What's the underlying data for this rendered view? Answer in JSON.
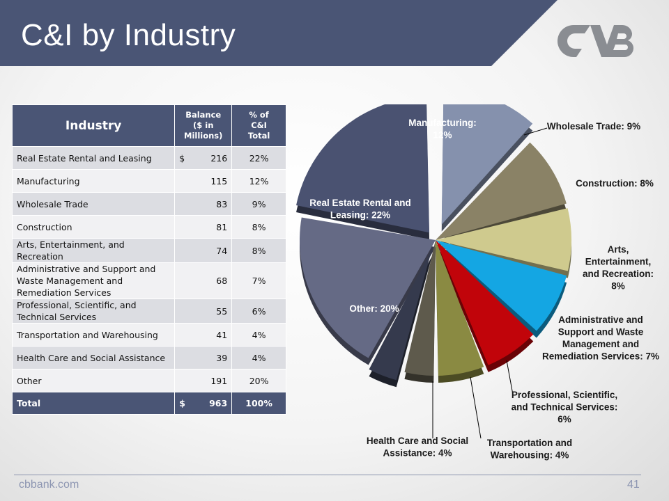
{
  "slide": {
    "title": "C&I by Industry",
    "footer": "cbbank.com",
    "page_number": "41"
  },
  "table": {
    "headers": {
      "industry": "Industry",
      "balance_line1": "Balance",
      "balance_line2": "($ in Millions)",
      "pct_line1": "% of",
      "pct_line2": "C&I",
      "pct_line3": "Total"
    },
    "rows": [
      {
        "industry": "Real Estate Rental and Leasing",
        "currency": "$",
        "balance": "216",
        "pct": "22%"
      },
      {
        "industry": "Manufacturing",
        "currency": "",
        "balance": "115",
        "pct": "12%"
      },
      {
        "industry": "Wholesale Trade",
        "currency": "",
        "balance": "83",
        "pct": "9%"
      },
      {
        "industry": "Construction",
        "currency": "",
        "balance": "81",
        "pct": "8%"
      },
      {
        "industry": "Arts, Entertainment, and Recreation",
        "currency": "",
        "balance": "74",
        "pct": "8%"
      },
      {
        "industry": "Administrative and Support and Waste Management and Remediation Services",
        "currency": "",
        "balance": "68",
        "pct": "7%"
      },
      {
        "industry": "Professional, Scientific, and Technical Services",
        "currency": "",
        "balance": "55",
        "pct": "6%"
      },
      {
        "industry": "Transportation and Warehousing",
        "currency": "",
        "balance": "41",
        "pct": "4%"
      },
      {
        "industry": "Health Care and Social Assistance",
        "currency": "",
        "balance": "39",
        "pct": "4%"
      },
      {
        "industry": "Other",
        "currency": "",
        "balance": "191",
        "pct": "20%"
      }
    ],
    "total": {
      "label": "Total",
      "currency": "$",
      "balance": "963",
      "pct": "100%"
    }
  },
  "chart_data": {
    "type": "pie",
    "slices": [
      {
        "label": "Manufacturing: 12%",
        "value": 12,
        "color": "#8591ad",
        "exploded": true
      },
      {
        "label": "Wholesale Trade: 9%",
        "value": 9,
        "color": "#8a8266"
      },
      {
        "label": "Construction: 8%",
        "value": 8,
        "color": "#cfca8e"
      },
      {
        "label": "Arts, Entertainment, and Recreation: 8%",
        "value": 8,
        "color": "#14a6e3"
      },
      {
        "label": "Administrative and Support and Waste Management and Remediation Services: 7%",
        "value": 7,
        "color": "#c1040a"
      },
      {
        "label": "Professional, Scientific, and Technical Services: 6%",
        "value": 6,
        "color": "#8a8a42"
      },
      {
        "label": "Transportation and Warehousing: 4%",
        "value": 4,
        "color": "#5e5a4c"
      },
      {
        "label": "Health Care and Social Assistance: 4%",
        "value": 4,
        "color": "#353a4d",
        "exploded": true
      },
      {
        "label": "Other: 20%",
        "value": 20,
        "color": "#656a85"
      },
      {
        "label": "Real Estate Rental and Leasing: 22%",
        "value": 22,
        "color": "#4a5271",
        "exploded": true
      }
    ],
    "labels": {
      "manufacturing": [
        "Manufacturing:",
        "12%"
      ],
      "wholesale": [
        "Wholesale Trade: 9%"
      ],
      "construction": [
        "Construction: 8%"
      ],
      "arts": [
        "Arts,",
        "Entertainment,",
        "and Recreation:",
        "8%"
      ],
      "admin": [
        "Administrative and",
        "Support and Waste",
        "Management and",
        "Remediation Services: 7%"
      ],
      "professional": [
        "Professional, Scientific,",
        "and Technical Services:",
        "6%"
      ],
      "transport": [
        "Transportation and",
        "Warehousing: 4%"
      ],
      "health": [
        "Health Care and Social",
        "Assistance: 4%"
      ],
      "other": [
        "Other: 20%"
      ],
      "realestate": [
        "Real Estate Rental and",
        "Leasing: 22%"
      ]
    }
  }
}
